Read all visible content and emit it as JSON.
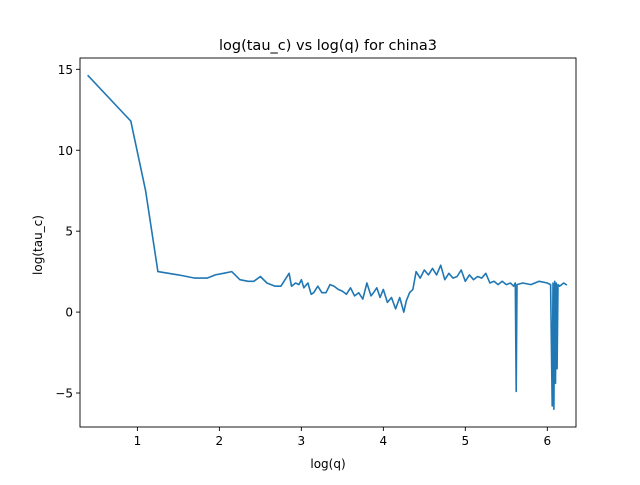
{
  "chart_data": {
    "type": "line",
    "title": "log(tau_c) vs log(q) for china3",
    "xlabel": "log(q)",
    "ylabel": "log(tau_c)",
    "xlim": [
      0.3,
      6.35
    ],
    "ylim": [
      -7.1,
      15.7
    ],
    "xticks": [
      1,
      2,
      3,
      4,
      5,
      6
    ],
    "yticks": [
      -5,
      0,
      5,
      10,
      15
    ],
    "xtick_labels": [
      "1",
      "2",
      "3",
      "4",
      "5",
      "6"
    ],
    "ytick_labels": [
      "−5",
      "0",
      "5",
      "10",
      "15"
    ],
    "grid": false,
    "series": [
      {
        "color": "#1f77b4",
        "x": [
          0.4,
          0.92,
          1.1,
          1.25,
          1.5,
          1.7,
          1.85,
          1.95,
          2.05,
          2.15,
          2.25,
          2.35,
          2.42,
          2.5,
          2.58,
          2.68,
          2.75,
          2.85,
          2.88,
          2.93,
          2.97,
          3.0,
          3.03,
          3.08,
          3.12,
          3.15,
          3.2,
          3.25,
          3.3,
          3.35,
          3.4,
          3.45,
          3.5,
          3.55,
          3.6,
          3.65,
          3.7,
          3.75,
          3.8,
          3.85,
          3.88,
          3.92,
          3.96,
          4.0,
          4.05,
          4.1,
          4.15,
          4.2,
          4.25,
          4.28,
          4.32,
          4.36,
          4.4,
          4.45,
          4.5,
          4.55,
          4.6,
          4.65,
          4.7,
          4.75,
          4.8,
          4.85,
          4.9,
          4.95,
          5.0,
          5.05,
          5.1,
          5.15,
          5.2,
          5.25,
          5.3,
          5.35,
          5.4,
          5.45,
          5.5,
          5.55,
          5.59,
          5.61,
          5.62,
          5.63,
          5.7,
          5.8,
          5.9,
          6.0,
          6.04,
          6.06,
          6.07,
          6.08,
          6.09,
          6.1,
          6.11,
          6.12,
          6.13,
          6.15,
          6.2,
          6.23
        ],
        "values": [
          14.6,
          11.8,
          7.5,
          2.5,
          2.3,
          2.1,
          2.1,
          2.3,
          2.4,
          2.5,
          2.0,
          1.9,
          1.9,
          2.2,
          1.8,
          1.6,
          1.6,
          2.4,
          1.6,
          1.8,
          1.7,
          2.0,
          1.5,
          1.8,
          1.1,
          1.2,
          1.6,
          1.2,
          1.2,
          1.7,
          1.6,
          1.4,
          1.3,
          1.1,
          1.5,
          1.0,
          1.2,
          0.8,
          1.8,
          1.0,
          1.2,
          1.5,
          0.9,
          1.4,
          0.6,
          0.9,
          0.2,
          0.9,
          0.0,
          0.7,
          1.2,
          1.4,
          2.5,
          2.1,
          2.6,
          2.3,
          2.7,
          2.3,
          2.9,
          2.0,
          2.4,
          2.1,
          2.2,
          2.6,
          1.9,
          2.3,
          2.0,
          2.2,
          2.1,
          2.4,
          1.8,
          1.9,
          1.7,
          1.9,
          1.7,
          1.8,
          1.6,
          1.8,
          -4.9,
          1.7,
          1.8,
          1.7,
          1.9,
          1.8,
          1.7,
          -5.8,
          1.8,
          -6.0,
          1.9,
          -4.4,
          1.8,
          -3.5,
          1.7,
          1.6,
          1.8,
          1.7
        ]
      }
    ]
  }
}
